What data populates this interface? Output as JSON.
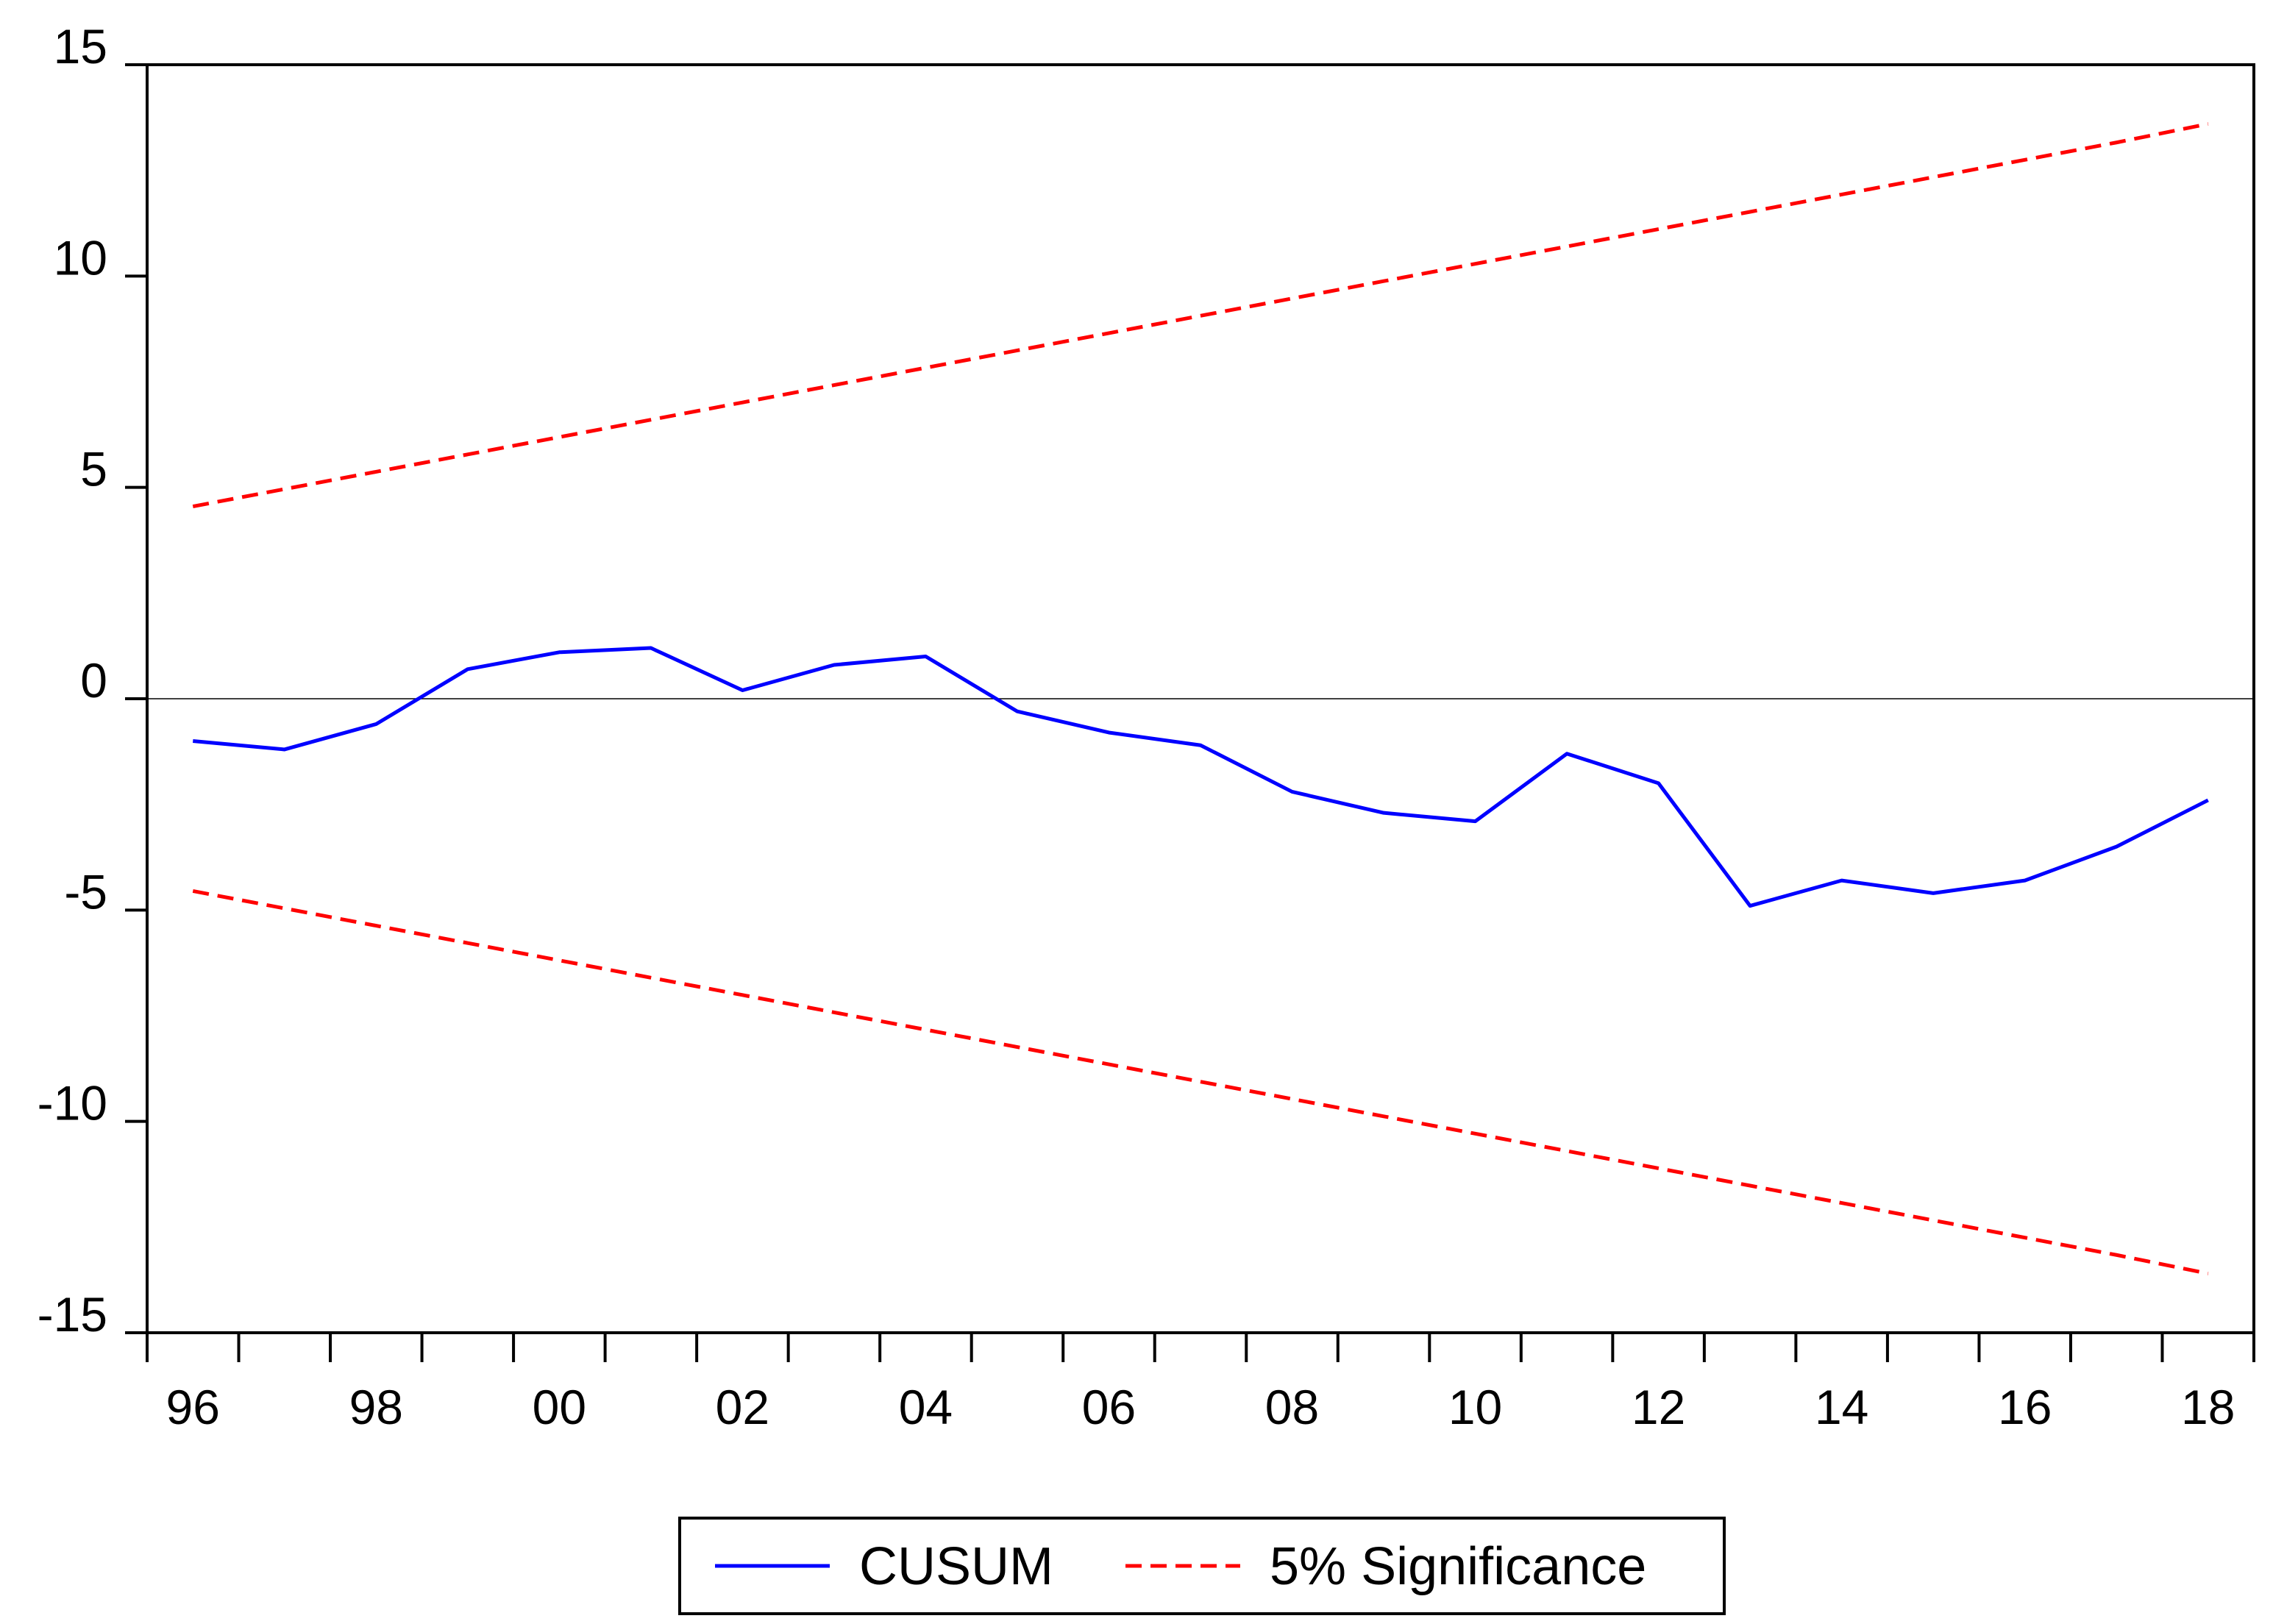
{
  "chart_data": {
    "type": "line",
    "title": "",
    "xlabel": "",
    "ylabel": "",
    "ylim": [
      -15,
      15
    ],
    "xlim": [
      1995.5,
      2018.5
    ],
    "yticks": [
      15,
      10,
      5,
      0,
      -5,
      -10,
      -15
    ],
    "ytick_labels": [
      "15",
      "10",
      "5",
      "0",
      "-5",
      "-10",
      "-15"
    ],
    "xtick_labels": [
      {
        "x": 1996,
        "label": "96"
      },
      {
        "x": 1998,
        "label": "98"
      },
      {
        "x": 2000,
        "label": "00"
      },
      {
        "x": 2002,
        "label": "02"
      },
      {
        "x": 2004,
        "label": "04"
      },
      {
        "x": 2006,
        "label": "06"
      },
      {
        "x": 2008,
        "label": "08"
      },
      {
        "x": 2010,
        "label": "10"
      },
      {
        "x": 2012,
        "label": "12"
      },
      {
        "x": 2014,
        "label": "14"
      },
      {
        "x": 2016,
        "label": "16"
      },
      {
        "x": 2018,
        "label": "18"
      }
    ],
    "grid": false,
    "zero_line": true,
    "legend_position": "bottom-center",
    "x": [
      1996,
      1997,
      1998,
      1999,
      2000,
      2001,
      2002,
      2003,
      2004,
      2005,
      2006,
      2007,
      2008,
      2009,
      2010,
      2011,
      2012,
      2013,
      2014,
      2015,
      2016,
      2017,
      2018
    ],
    "series": [
      {
        "name": "CUSUM",
        "color": "#0000ff",
        "style": "solid",
        "values": [
          -1.0,
          -1.2,
          -0.6,
          0.7,
          1.1,
          1.2,
          0.2,
          0.8,
          1.0,
          -0.3,
          -0.8,
          -1.1,
          -2.2,
          -2.7,
          -2.9,
          -1.3,
          -2.0,
          -4.9,
          -4.3,
          -4.6,
          -4.3,
          -3.5,
          -2.4
        ]
      },
      {
        "name": "5% Significance",
        "color": "#ff0000",
        "style": "dashed",
        "values": [
          4.55,
          4.96,
          5.37,
          5.78,
          6.19,
          6.6,
          7.01,
          7.42,
          7.83,
          8.24,
          8.65,
          9.06,
          9.47,
          9.88,
          10.29,
          10.7,
          11.11,
          11.52,
          11.93,
          12.34,
          12.75,
          13.16,
          13.6
        ]
      },
      {
        "color": "#ff0000",
        "style": "dashed",
        "values": [
          -4.55,
          -4.96,
          -5.37,
          -5.78,
          -6.19,
          -6.6,
          -7.01,
          -7.42,
          -7.83,
          -8.24,
          -8.65,
          -9.06,
          -9.47,
          -9.88,
          -10.29,
          -10.7,
          -11.11,
          -11.52,
          -11.93,
          -12.34,
          -12.75,
          -13.16,
          -13.6
        ]
      }
    ]
  },
  "legend": {
    "items": [
      {
        "label": "CUSUM",
        "color": "#0000ff",
        "style": "solid"
      },
      {
        "label": "5% Significance",
        "color": "#ff0000",
        "style": "dashed"
      }
    ]
  }
}
